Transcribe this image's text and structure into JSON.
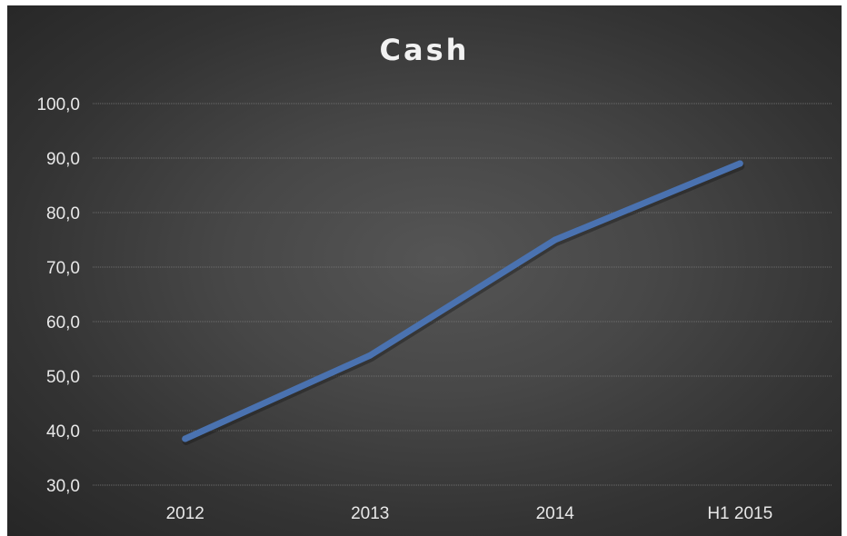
{
  "chart_data": {
    "type": "line",
    "title": "Cash",
    "xlabel": "",
    "ylabel": "",
    "categories": [
      "2012",
      "2013",
      "2014",
      "H1 2015"
    ],
    "series": [
      {
        "values": [
          38.5,
          53.8,
          75.0,
          89.0
        ],
        "color": "#4a72b0"
      }
    ],
    "ylim": [
      30,
      100
    ],
    "y_ticks": [
      "30,0",
      "40,0",
      "50,0",
      "60,0",
      "70,0",
      "80,0",
      "90,0",
      "100,0"
    ],
    "grid": true,
    "legend": "none",
    "background": "#474747",
    "text_color": "#e8e8e8"
  }
}
